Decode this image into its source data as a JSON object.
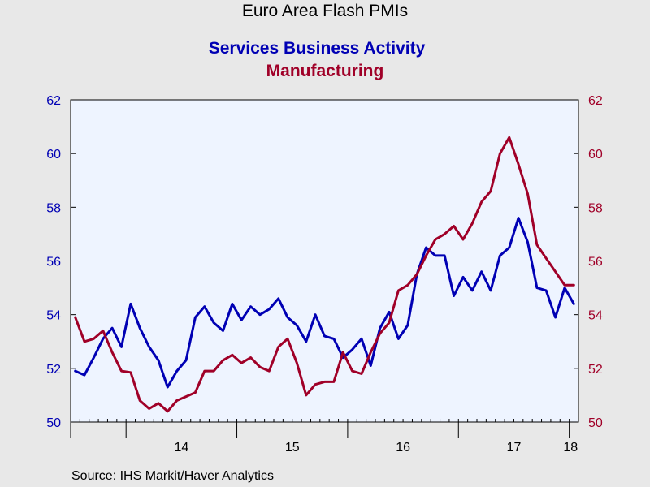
{
  "title": "Euro Area Flash PMIs",
  "subtitles": {
    "services": "Services Business Activity",
    "manufacturing": "Manufacturing"
  },
  "source": "Source:  IHS Markit/Haver Analytics",
  "colors": {
    "services": "#0000b4",
    "manufacturing": "#a00028",
    "plot_bg": "#eef4ff",
    "page_bg": "#e8e8e8"
  },
  "chart_data": {
    "type": "line",
    "title": "Euro Area Flash PMIs",
    "x_start": "2013-07",
    "x_labels": [
      "14",
      "15",
      "16",
      "17",
      "18"
    ],
    "ylim": [
      50,
      62
    ],
    "yticks": [
      50,
      52,
      54,
      56,
      58,
      60,
      62
    ],
    "grid": false,
    "series": [
      {
        "name": "Services Business Activity",
        "axis": "left",
        "color": "#0000b4",
        "values": [
          51.9,
          51.75,
          52.4,
          53.1,
          53.5,
          52.8,
          54.4,
          53.5,
          52.8,
          52.3,
          51.3,
          51.9,
          52.3,
          53.9,
          54.3,
          53.7,
          53.4,
          54.4,
          53.8,
          54.3,
          54.0,
          54.2,
          54.6,
          53.9,
          53.6,
          53.0,
          54.0,
          53.2,
          53.1,
          52.4,
          52.7,
          53.1,
          52.1,
          53.5,
          54.1,
          53.1,
          53.6,
          55.5,
          56.5,
          56.2,
          56.2,
          54.7,
          55.4,
          54.9,
          55.6,
          54.9,
          56.2,
          56.5,
          57.6,
          56.7,
          55.0,
          54.9,
          53.9,
          55.0,
          54.4
        ]
      },
      {
        "name": "Manufacturing",
        "axis": "right",
        "color": "#a00028",
        "values": [
          53.9,
          53.0,
          53.1,
          53.4,
          52.6,
          51.9,
          51.85,
          50.8,
          50.5,
          50.7,
          50.4,
          50.8,
          50.95,
          51.1,
          51.9,
          51.9,
          52.3,
          52.5,
          52.2,
          52.4,
          52.05,
          51.9,
          52.8,
          53.1,
          52.2,
          51.0,
          51.4,
          51.5,
          51.5,
          52.6,
          51.9,
          51.8,
          52.6,
          53.3,
          53.7,
          54.9,
          55.1,
          55.5,
          56.2,
          56.8,
          57.0,
          57.3,
          56.8,
          57.4,
          58.2,
          58.6,
          60.0,
          60.6,
          59.6,
          58.5,
          56.6,
          56.1,
          55.6,
          55.1,
          55.1
        ]
      }
    ],
    "left_axis": {
      "min": 50,
      "max": 62,
      "ticks": [
        50,
        52,
        54,
        56,
        58,
        60,
        62
      ],
      "color": "#0000b4"
    },
    "right_axis": {
      "min": 50,
      "max": 62,
      "ticks": [
        50,
        52,
        54,
        56,
        58,
        60,
        62
      ],
      "color": "#a00028"
    }
  }
}
